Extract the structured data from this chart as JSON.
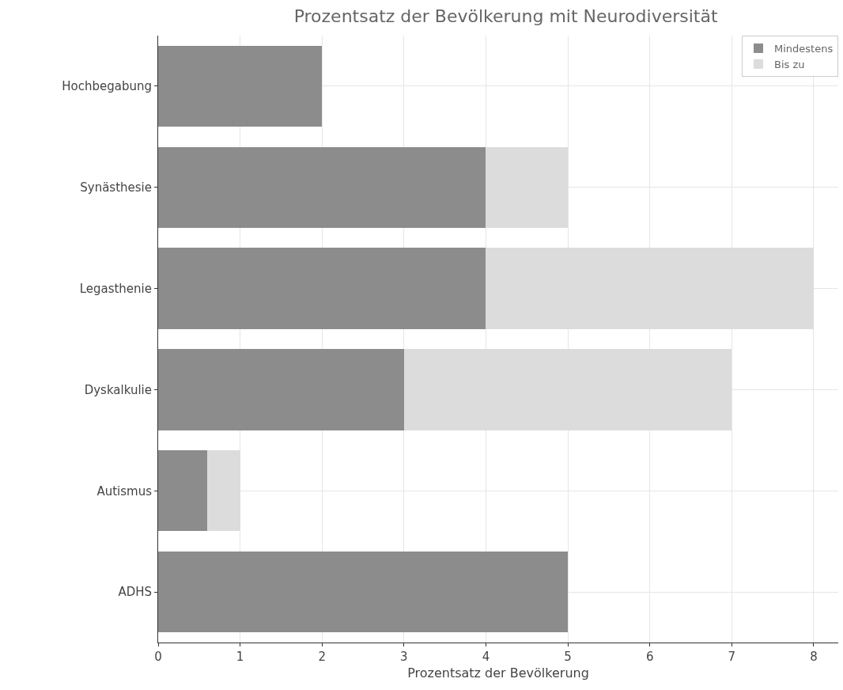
{
  "chart_data": {
    "type": "bar",
    "orientation": "horizontal",
    "stacked": true,
    "title": "Prozentsatz der Bevölkerung mit Neurodiversität",
    "xlabel": "Prozentsatz der Bevölkerung",
    "categories": [
      "Hochbegabung",
      "Synästhesie",
      "Legasthenie",
      "Dyskalkulie",
      "Autismus",
      "ADHS"
    ],
    "series": [
      {
        "name": "Mindestens",
        "color": "#8c8c8c",
        "values": [
          2,
          4,
          4,
          3,
          0.6,
          5
        ]
      },
      {
        "name": "Bis zu",
        "color": "#dcdcdc",
        "values": [
          null,
          1,
          4,
          4,
          0.4,
          null
        ]
      }
    ],
    "xlim": [
      0,
      8.3
    ],
    "xticks": [
      0,
      1,
      2,
      3,
      4,
      5,
      6,
      7,
      8
    ],
    "grid": true,
    "legend": "top right"
  }
}
